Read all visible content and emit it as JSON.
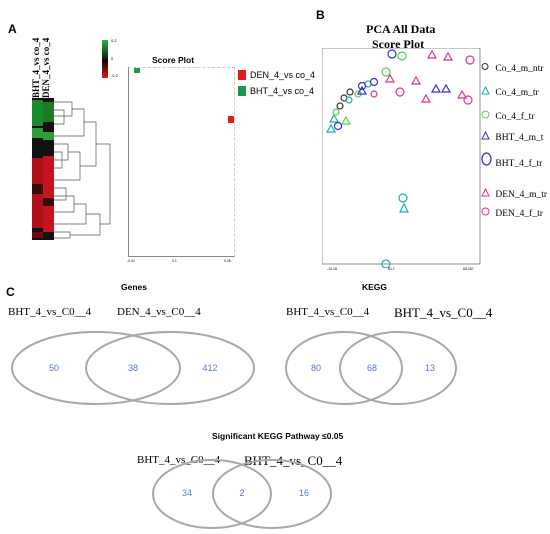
{
  "panels": {
    "a": "A",
    "b": "B",
    "c": "C"
  },
  "panel_a": {
    "heatmap_col_labels": [
      "BHT_4_vs co_4",
      "DEN_4_vs co_4"
    ],
    "colorbar_ticks": [
      "0.2",
      "0",
      "-0.2"
    ],
    "score_plot_title": "Score Plot",
    "x_ticks": [
      "-0.01",
      "0.1",
      "0.26"
    ],
    "legend": [
      {
        "label": "DEN_4_vs co_4",
        "color": "#e31a1c"
      },
      {
        "label": "BHT_4_vs co_4",
        "color": "#1a9850"
      }
    ]
  },
  "panel_b": {
    "title_line1": "PCA All Data",
    "title_line2": "Score Plot",
    "x_ticks": [
      "-10.18",
      "81.1",
      "68.287"
    ],
    "legend": [
      {
        "label": "Co_4_m_ntr",
        "marker": "circle",
        "color": "#333333"
      },
      {
        "label": "Co_4_m_tr",
        "marker": "triangle",
        "color": "#22aaaa"
      },
      {
        "label": "Co_4_f_tr",
        "marker": "circle",
        "color": "#55cc55"
      },
      {
        "label": "BHT_4_m_t",
        "marker": "triangle",
        "color": "#3333cc"
      },
      {
        "label": "BHT_4_f_tr",
        "marker": "circle",
        "color": "#3333cc"
      },
      {
        "label": "DEN_4_m_tr",
        "marker": "triangle",
        "color": "#dd3399"
      },
      {
        "label": "DEN_4_f_tr",
        "marker": "circle",
        "color": "#dd3399"
      }
    ]
  },
  "panel_c": {
    "genes": {
      "title": "Genes",
      "left_label": "BHT_4_vs_C0__4",
      "right_label": "DEN_4_vs_C0__4",
      "left_only": "50",
      "overlap": "38",
      "right_only": "412"
    },
    "kegg": {
      "title": "KEGG",
      "left_label": "BHT_4_vs_C0__4",
      "right_label": "BHT_4_vs_C0__4",
      "left_only": "80",
      "overlap": "68",
      "right_only": "13"
    },
    "sig_kegg": {
      "title": "Significant KEGG Pathway ≤0.05",
      "left_label": "BHT_4_vs_C0__4",
      "right_label": "BHT_4_vs_C0__4",
      "left_only": "34",
      "overlap": "2",
      "right_only": "16"
    }
  }
}
